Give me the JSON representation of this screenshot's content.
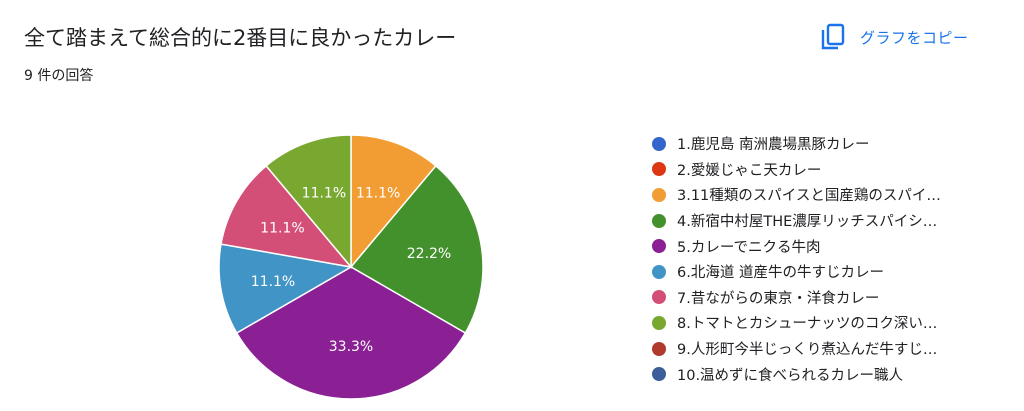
{
  "header": {
    "title": "全て踏まえて総合的に2番目に良かったカレー",
    "response_count": "9 件の回答",
    "copy_button_label": "グラフをコピー",
    "copy_icon": "copy-icon"
  },
  "colors": {
    "accent": "#1a73e8"
  },
  "chart_data": {
    "type": "pie",
    "legend_position": "right",
    "slice_order": "clockwise-from-top",
    "slices": [
      {
        "label": "1.鹿児島 南洲農場黒豚カレー",
        "display": "1.鹿児島 南洲農場黒豚カレー",
        "value": 0,
        "percent_text": "",
        "color": "#3366cc"
      },
      {
        "label": "2.愛媛じゃこ天カレー",
        "display": "2.愛媛じゃこ天カレー",
        "value": 0,
        "percent_text": "",
        "color": "#dc3912"
      },
      {
        "label": "3.11種類のスパイスと国産鶏のスパイ…",
        "display": "3.11種類のスパイスと国産鶏のスパイ…",
        "value": 1,
        "percent_text": "11.1%",
        "color": "#f29d34"
      },
      {
        "label": "4.新宿中村屋THE濃厚リッチスパイシ…",
        "display": "4.新宿中村屋THE濃厚リッチスパイシ…",
        "value": 2,
        "percent_text": "22.2%",
        "color": "#43912c"
      },
      {
        "label": "5.カレーでニクる牛肉",
        "display": "5.カレーでニクる牛肉",
        "value": 3,
        "percent_text": "33.3%",
        "color": "#8a2094"
      },
      {
        "label": "6.北海道 道産牛の牛すじカレー",
        "display": "6.北海道 道産牛の牛すじカレー",
        "value": 1,
        "percent_text": "11.1%",
        "color": "#4094c6"
      },
      {
        "label": "7.昔ながらの東京・洋食カレー",
        "display": "7.昔ながらの東京・洋食カレー",
        "value": 1,
        "percent_text": "11.1%",
        "color": "#d44f77"
      },
      {
        "label": "8.トマトとカシューナッツのコク深い…",
        "display": "8.トマトとカシューナッツのコク深い…",
        "value": 1,
        "percent_text": "11.1%",
        "color": "#78a830"
      },
      {
        "label": "9.人形町今半じっくり煮込んだ牛すじ…",
        "display": "9.人形町今半じっくり煮込んだ牛すじ…",
        "value": 0,
        "percent_text": "",
        "color": "#b03a2e"
      },
      {
        "label": "10.温めずに食べられるカレー職人",
        "display": "10.温めずに食べられるカレー職人",
        "value": 0,
        "percent_text": "",
        "color": "#3b5d9a"
      }
    ]
  }
}
